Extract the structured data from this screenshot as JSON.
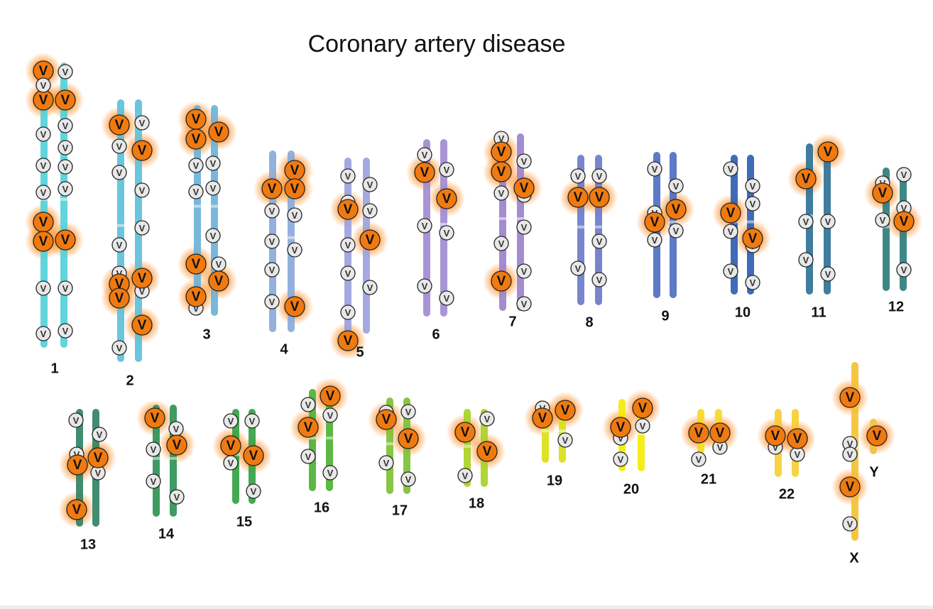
{
  "title": "Coronary artery disease",
  "marker_label": "V",
  "chromosomes": [
    {
      "label": "1"
    },
    {
      "label": "2"
    },
    {
      "label": "3"
    },
    {
      "label": "4"
    },
    {
      "label": "5"
    },
    {
      "label": "6"
    },
    {
      "label": "7"
    },
    {
      "label": "8"
    },
    {
      "label": "9"
    },
    {
      "label": "10"
    },
    {
      "label": "11"
    },
    {
      "label": "12"
    },
    {
      "label": "13"
    },
    {
      "label": "14"
    },
    {
      "label": "15"
    },
    {
      "label": "16"
    },
    {
      "label": "17"
    },
    {
      "label": "18"
    },
    {
      "label": "19"
    },
    {
      "label": "20"
    },
    {
      "label": "21"
    },
    {
      "label": "22"
    },
    {
      "label": "X"
    },
    {
      "label": "Y"
    }
  ]
}
